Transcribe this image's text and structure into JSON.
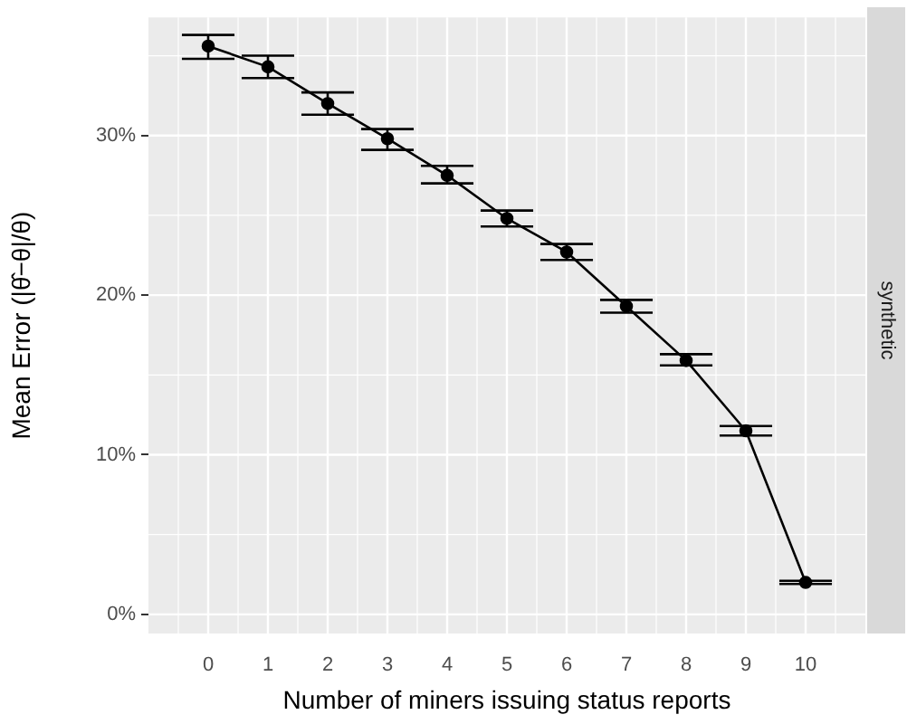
{
  "chart_data": {
    "type": "line",
    "xlabel": "Number of miners issuing status reports",
    "ylabel": "Mean Error (|θ̂−θ|/θ)",
    "annotations": [
      "synthetic"
    ],
    "x": [
      0,
      1,
      2,
      3,
      4,
      5,
      6,
      7,
      8,
      9,
      10
    ],
    "series": [
      {
        "color": "#000000",
        "values": [
          35.6,
          34.3,
          32.0,
          29.8,
          27.5,
          24.8,
          22.7,
          19.3,
          15.9,
          11.5,
          2.0
        ],
        "errors": [
          [
            34.8,
            36.3
          ],
          [
            33.6,
            35.0
          ],
          [
            31.3,
            32.7
          ],
          [
            29.1,
            30.4
          ],
          [
            27.0,
            28.1
          ],
          [
            24.3,
            25.3
          ],
          [
            22.2,
            23.2
          ],
          [
            18.9,
            19.7
          ],
          [
            15.6,
            16.3
          ],
          [
            11.2,
            11.8
          ],
          [
            1.9,
            2.1
          ]
        ]
      }
    ],
    "xlim": [
      -1,
      11
    ],
    "xticks": [
      0,
      1,
      2,
      3,
      4,
      5,
      6,
      7,
      8,
      9,
      10
    ],
    "ylim": [
      -1.2,
      37.4
    ],
    "yticks": [
      {
        "value": 0,
        "label": "0%"
      },
      {
        "value": 10,
        "label": "10%"
      },
      {
        "value": 20,
        "label": "20%"
      },
      {
        "value": 30,
        "label": "30%"
      }
    ],
    "grid": true,
    "legend": false,
    "marker": "circle",
    "line_style": "solid"
  }
}
